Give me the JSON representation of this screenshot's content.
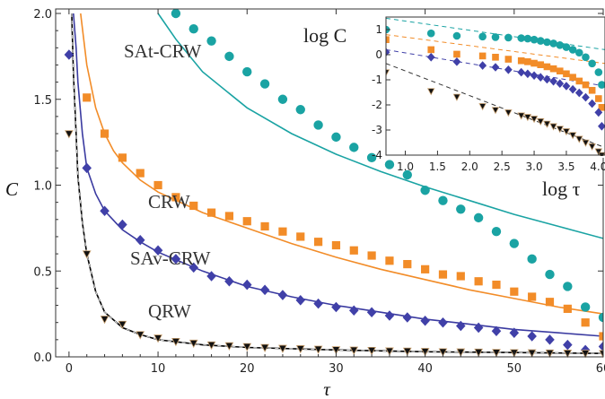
{
  "chart_data": [
    {
      "type": "scatter",
      "xlabel": "τ",
      "ylabel": "C",
      "xlim": [
        -1.5,
        60
      ],
      "ylim": [
        0,
        2.0
      ],
      "xticks": [
        "0",
        "10",
        "20",
        "30",
        "40",
        "50",
        "60"
      ],
      "yticks": [
        "0.0",
        "0.5",
        "1.0",
        "1.5",
        "2.0"
      ],
      "annotations": [
        "SAt-CRW",
        "CRW",
        "SAv-CRW",
        "QRW"
      ],
      "series": [
        {
          "name": "SAt-CRW",
          "color": "#1aa3a3",
          "marker": "circle",
          "x": [
            12,
            14,
            16,
            18,
            20,
            22,
            24,
            26,
            28,
            30,
            32,
            34,
            36,
            38,
            40,
            42,
            44,
            46,
            48,
            50,
            52,
            54,
            56,
            58,
            60
          ],
          "y": [
            2.0,
            1.91,
            1.84,
            1.75,
            1.66,
            1.59,
            1.5,
            1.44,
            1.35,
            1.28,
            1.22,
            1.16,
            1.12,
            1.06,
            0.97,
            0.91,
            0.86,
            0.81,
            0.73,
            0.66,
            0.57,
            0.48,
            0.41,
            0.29,
            0.23
          ]
        },
        {
          "name": "CRW",
          "color": "#f28c28",
          "marker": "square",
          "x": [
            2,
            4,
            6,
            8,
            10,
            12,
            14,
            16,
            18,
            20,
            22,
            24,
            26,
            28,
            30,
            32,
            34,
            36,
            38,
            40,
            42,
            44,
            46,
            48,
            50,
            52,
            54,
            56,
            58,
            60
          ],
          "y": [
            1.51,
            1.3,
            1.16,
            1.07,
            1.0,
            0.93,
            0.88,
            0.84,
            0.82,
            0.79,
            0.76,
            0.73,
            0.7,
            0.67,
            0.65,
            0.62,
            0.59,
            0.56,
            0.54,
            0.51,
            0.48,
            0.47,
            0.44,
            0.42,
            0.38,
            0.35,
            0.32,
            0.28,
            0.2,
            0.12
          ]
        },
        {
          "name": "SAv-CRW",
          "color": "#4040a8",
          "marker": "diamond",
          "x": [
            0,
            2,
            4,
            6,
            8,
            10,
            12,
            14,
            16,
            18,
            20,
            22,
            24,
            26,
            28,
            30,
            32,
            34,
            36,
            38,
            40,
            42,
            44,
            46,
            48,
            50,
            52,
            54,
            56,
            58,
            60
          ],
          "y": [
            1.76,
            1.1,
            0.85,
            0.77,
            0.68,
            0.62,
            0.57,
            0.52,
            0.47,
            0.44,
            0.42,
            0.39,
            0.36,
            0.33,
            0.31,
            0.29,
            0.27,
            0.26,
            0.24,
            0.23,
            0.21,
            0.2,
            0.18,
            0.17,
            0.15,
            0.14,
            0.12,
            0.1,
            0.07,
            0.04,
            0.06
          ]
        },
        {
          "name": "QRW",
          "color": "#111111",
          "marker": "triangle",
          "x": [
            0,
            2,
            4,
            6,
            8,
            10,
            12,
            14,
            16,
            18,
            20,
            22,
            24,
            26,
            28,
            30,
            32,
            34,
            36,
            38,
            40,
            42,
            44,
            46,
            48,
            50,
            52,
            54,
            56,
            58,
            60
          ],
          "y": [
            1.3,
            0.6,
            0.22,
            0.19,
            0.13,
            0.11,
            0.09,
            0.08,
            0.07,
            0.065,
            0.06,
            0.055,
            0.05,
            0.048,
            0.045,
            0.042,
            0.04,
            0.038,
            0.035,
            0.034,
            0.032,
            0.03,
            0.029,
            0.028,
            0.026,
            0.025,
            0.024,
            0.023,
            0.022,
            0.021,
            0.02
          ]
        }
      ],
      "fits": [
        {
          "series": "SAt-CRW",
          "color": "#1aa3a3",
          "x": [
            10,
            12,
            15,
            20,
            25,
            30,
            35,
            40,
            45,
            50,
            55,
            60
          ],
          "y": [
            2.0,
            1.85,
            1.66,
            1.45,
            1.3,
            1.18,
            1.08,
            0.99,
            0.91,
            0.83,
            0.76,
            0.69
          ]
        },
        {
          "series": "CRW",
          "color": "#f28c28",
          "x": [
            1.3,
            2,
            3,
            4,
            5,
            6,
            8,
            10,
            15,
            20,
            25,
            30,
            35,
            40,
            45,
            50,
            55,
            60
          ],
          "y": [
            2.0,
            1.7,
            1.45,
            1.3,
            1.2,
            1.13,
            1.03,
            0.96,
            0.84,
            0.75,
            0.66,
            0.58,
            0.51,
            0.45,
            0.39,
            0.34,
            0.29,
            0.25
          ]
        },
        {
          "series": "SAv-CRW",
          "color": "#3a3aa0",
          "x": [
            0.5,
            0.8,
            1,
            1.5,
            2,
            3,
            4,
            6,
            8,
            10,
            15,
            20,
            25,
            30,
            35,
            40,
            45,
            50,
            55,
            60
          ],
          "y": [
            2.0,
            1.8,
            1.6,
            1.3,
            1.1,
            0.95,
            0.85,
            0.74,
            0.67,
            0.61,
            0.5,
            0.41,
            0.35,
            0.3,
            0.26,
            0.22,
            0.19,
            0.16,
            0.14,
            0.12
          ]
        },
        {
          "series": "QRW",
          "color": "#000000",
          "x": [
            0.3,
            0.5,
            0.8,
            1,
            1.5,
            2,
            3,
            4,
            6,
            8,
            10,
            15,
            20,
            30,
            40,
            50,
            60
          ],
          "y": [
            2.0,
            1.65,
            1.3,
            1.05,
            0.78,
            0.6,
            0.38,
            0.26,
            0.17,
            0.13,
            0.1,
            0.07,
            0.055,
            0.04,
            0.03,
            0.025,
            0.02
          ]
        }
      ]
    },
    {
      "type": "scatter",
      "xlabel": "log τ",
      "ylabel": "log C",
      "xlim": [
        0.7,
        4.1
      ],
      "ylim": [
        -4,
        1.5
      ],
      "xticks": [
        "1.0",
        "1.5",
        "2.0",
        "2.5",
        "3.0",
        "3.5",
        "4.0"
      ],
      "yticks": [
        "1",
        "0",
        "-1",
        "-2",
        "-3",
        "-4"
      ],
      "series": [
        {
          "name": "SAt-CRW",
          "color": "#1aa3a3",
          "marker": "circle",
          "x": [
            0.7,
            1.4,
            1.8,
            2.2,
            2.4,
            2.6,
            2.8,
            2.9,
            3.0,
            3.1,
            3.2,
            3.3,
            3.4,
            3.5,
            3.6,
            3.7,
            3.8,
            3.9,
            4.0,
            4.05
          ],
          "y": [
            1.0,
            0.85,
            0.75,
            0.72,
            0.7,
            0.68,
            0.66,
            0.64,
            0.6,
            0.55,
            0.5,
            0.45,
            0.38,
            0.3,
            0.2,
            0.08,
            -0.1,
            -0.35,
            -0.7,
            -1.2
          ]
        },
        {
          "name": "CRW",
          "color": "#f28c28",
          "marker": "square",
          "x": [
            0.7,
            1.4,
            1.8,
            2.2,
            2.4,
            2.6,
            2.8,
            2.9,
            3.0,
            3.1,
            3.2,
            3.3,
            3.4,
            3.5,
            3.6,
            3.7,
            3.8,
            3.9,
            4.0,
            4.05
          ],
          "y": [
            0.6,
            0.2,
            0.02,
            -0.05,
            -0.1,
            -0.18,
            -0.24,
            -0.28,
            -0.34,
            -0.4,
            -0.48,
            -0.56,
            -0.65,
            -0.76,
            -0.9,
            -1.05,
            -1.2,
            -1.42,
            -1.75,
            -2.1
          ]
        },
        {
          "name": "SAv-CRW",
          "color": "#4040a8",
          "marker": "diamond",
          "x": [
            0.7,
            1.4,
            1.8,
            2.2,
            2.4,
            2.6,
            2.8,
            2.9,
            3.0,
            3.1,
            3.2,
            3.3,
            3.4,
            3.5,
            3.6,
            3.7,
            3.8,
            3.9,
            4.0,
            4.05
          ],
          "y": [
            0.1,
            -0.1,
            -0.28,
            -0.43,
            -0.5,
            -0.6,
            -0.7,
            -0.76,
            -0.83,
            -0.9,
            -0.98,
            -1.06,
            -1.15,
            -1.25,
            -1.38,
            -1.52,
            -1.7,
            -1.95,
            -2.3,
            -2.85
          ]
        },
        {
          "name": "QRW",
          "color": "#111111",
          "marker": "triangle",
          "x": [
            0.7,
            1.4,
            1.8,
            2.2,
            2.4,
            2.6,
            2.8,
            2.9,
            3.0,
            3.1,
            3.2,
            3.3,
            3.4,
            3.5,
            3.6,
            3.7,
            3.8,
            3.9,
            4.0,
            4.05
          ],
          "y": [
            -0.7,
            -1.45,
            -1.68,
            -2.05,
            -2.2,
            -2.3,
            -2.42,
            -2.48,
            -2.55,
            -2.65,
            -2.75,
            -2.85,
            -2.95,
            -3.05,
            -3.2,
            -3.35,
            -3.5,
            -3.65,
            -3.85,
            -4.0
          ]
        }
      ],
      "fits": [
        {
          "series": "SAt-CRW",
          "color": "#1aa3a3",
          "x": [
            0.7,
            4.1
          ],
          "y": [
            1.45,
            0.2
          ]
        },
        {
          "series": "CRW",
          "color": "#f28c28",
          "x": [
            0.7,
            4.1
          ],
          "y": [
            0.8,
            -0.35
          ]
        },
        {
          "series": "SAv-CRW",
          "color": "#4040a8",
          "x": [
            0.7,
            4.1
          ],
          "y": [
            0.2,
            -1.25
          ]
        },
        {
          "series": "QRW",
          "color": "#333333",
          "x": [
            0.7,
            4.1
          ],
          "y": [
            -0.35,
            -3.7
          ]
        }
      ]
    }
  ]
}
